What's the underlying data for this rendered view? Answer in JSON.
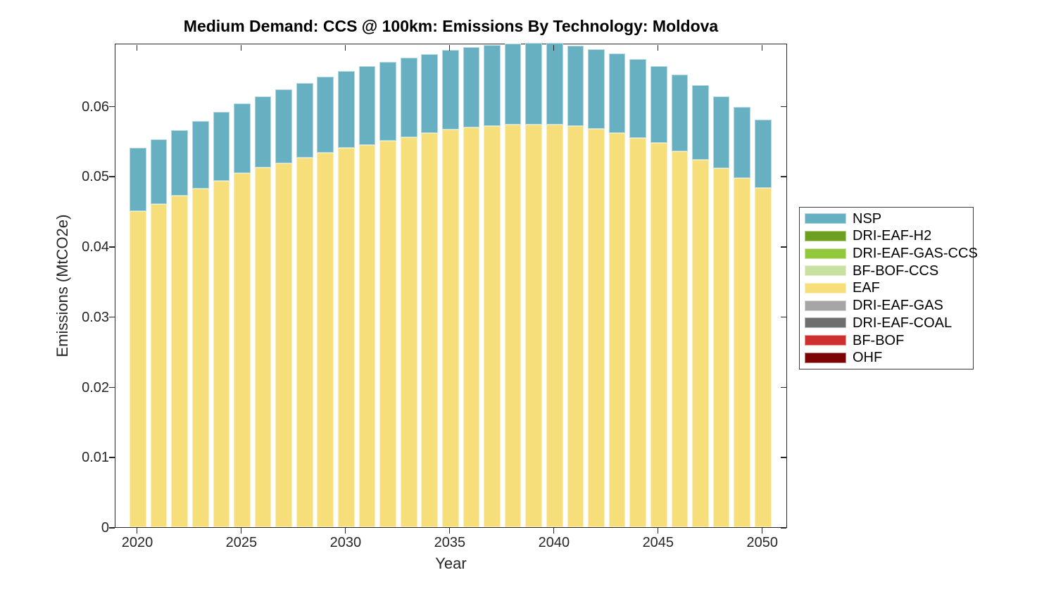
{
  "chart_data": {
    "type": "bar",
    "stacked": true,
    "title": "Medium Demand: CCS @ 100km: Emissions By Technology: Moldova",
    "xlabel": "Year",
    "ylabel": "Emissions (MtCO2e)",
    "x": [
      2020,
      2021,
      2022,
      2023,
      2024,
      2025,
      2026,
      2027,
      2028,
      2029,
      2030,
      2031,
      2032,
      2033,
      2034,
      2035,
      2036,
      2037,
      2038,
      2039,
      2040,
      2041,
      2042,
      2043,
      2044,
      2045,
      2046,
      2047,
      2048,
      2049,
      2050
    ],
    "series": [
      {
        "name": "NSP",
        "color": "#66B0C2",
        "values": [
          0.0091,
          0.0093,
          0.0094,
          0.0097,
          0.0099,
          0.01,
          0.0102,
          0.0105,
          0.0106,
          0.0108,
          0.0109,
          0.0112,
          0.0112,
          0.0113,
          0.0112,
          0.0113,
          0.0114,
          0.0115,
          0.0115,
          0.0116,
          0.0116,
          0.0114,
          0.0113,
          0.0113,
          0.0112,
          0.0109,
          0.0109,
          0.0106,
          0.0103,
          0.0102,
          0.0098
        ]
      },
      {
        "name": "DRI-EAF-H2",
        "color": "#6DA01E",
        "values": [
          0,
          0,
          0,
          0,
          0,
          0,
          0,
          0,
          0,
          0,
          0,
          0,
          0,
          0,
          0,
          0,
          0,
          0,
          0,
          0,
          0,
          0,
          0,
          0,
          0,
          0,
          0,
          0,
          0,
          0,
          0
        ]
      },
      {
        "name": "DRI-EAF-GAS-CCS",
        "color": "#93C83D",
        "values": [
          0,
          0,
          0,
          0,
          0,
          0,
          0,
          0,
          0,
          0,
          0,
          0,
          0,
          0,
          0,
          0,
          0,
          0,
          0,
          0,
          0,
          0,
          0,
          0,
          0,
          0,
          0,
          0,
          0,
          0,
          0
        ]
      },
      {
        "name": "BF-BOF-CCS",
        "color": "#C8E0A0",
        "values": [
          0,
          0,
          0,
          0,
          0,
          0,
          0,
          0,
          0,
          0,
          0,
          0,
          0,
          0,
          0,
          0,
          0,
          0,
          0,
          0,
          0,
          0,
          0,
          0,
          0,
          0,
          0,
          0,
          0,
          0,
          0
        ]
      },
      {
        "name": "EAF",
        "color": "#F6DF7B",
        "values": [
          0.045,
          0.046,
          0.0472,
          0.0482,
          0.0493,
          0.0504,
          0.0512,
          0.0519,
          0.0527,
          0.0534,
          0.0541,
          0.0545,
          0.0551,
          0.0556,
          0.0562,
          0.0567,
          0.057,
          0.0572,
          0.0574,
          0.0574,
          0.0574,
          0.0572,
          0.0568,
          0.0562,
          0.0555,
          0.0548,
          0.0536,
          0.0524,
          0.0511,
          0.0497,
          0.0483
        ]
      },
      {
        "name": "DRI-EAF-GAS",
        "color": "#A6A6A6",
        "values": [
          0,
          0,
          0,
          0,
          0,
          0,
          0,
          0,
          0,
          0,
          0,
          0,
          0,
          0,
          0,
          0,
          0,
          0,
          0,
          0,
          0,
          0,
          0,
          0,
          0,
          0,
          0,
          0,
          0,
          0,
          0
        ]
      },
      {
        "name": "DRI-EAF-COAL",
        "color": "#6E6E6E",
        "values": [
          0,
          0,
          0,
          0,
          0,
          0,
          0,
          0,
          0,
          0,
          0,
          0,
          0,
          0,
          0,
          0,
          0,
          0,
          0,
          0,
          0,
          0,
          0,
          0,
          0,
          0,
          0,
          0,
          0,
          0,
          0
        ]
      },
      {
        "name": "BF-BOF",
        "color": "#CE2F2F",
        "values": [
          0,
          0,
          0,
          0,
          0,
          0,
          0,
          0,
          0,
          0,
          0,
          0,
          0,
          0,
          0,
          0,
          0,
          0,
          0,
          0,
          0,
          0,
          0,
          0,
          0,
          0,
          0,
          0,
          0,
          0,
          0
        ]
      },
      {
        "name": "OHF",
        "color": "#7D0404",
        "values": [
          0,
          0,
          0,
          0,
          0,
          0,
          0,
          0,
          0,
          0,
          0,
          0,
          0,
          0,
          0,
          0,
          0,
          0,
          0,
          0,
          0,
          0,
          0,
          0,
          0,
          0,
          0,
          0,
          0,
          0,
          0
        ]
      }
    ],
    "stack_bottom_to_top": [
      "OHF",
      "BF-BOF",
      "DRI-EAF-COAL",
      "DRI-EAF-GAS",
      "EAF",
      "BF-BOF-CCS",
      "DRI-EAF-GAS-CCS",
      "DRI-EAF-H2",
      "NSP"
    ],
    "bar_width_data_units": 0.8,
    "xlim": [
      2018.92,
      2051.19
    ],
    "ylim": [
      0,
      0.069
    ],
    "x_ticks": [
      2020,
      2025,
      2030,
      2035,
      2040,
      2045,
      2050
    ],
    "x_tick_labels": [
      "2020",
      "2025",
      "2030",
      "2035",
      "2040",
      "2045",
      "2050"
    ],
    "y_ticks": [
      0,
      0.01,
      0.02,
      0.03,
      0.04,
      0.05,
      0.06
    ],
    "y_tick_labels": [
      "0",
      "0.01",
      "0.02",
      "0.03",
      "0.04",
      "0.05",
      "0.06"
    ],
    "grid": false,
    "plot_background": "#ffffff",
    "axis_color": "#262626"
  },
  "legend": {
    "position": "outside-right",
    "labels": [
      "NSP",
      "DRI-EAF-H2",
      "DRI-EAF-GAS-CCS",
      "BF-BOF-CCS",
      "EAF",
      "DRI-EAF-GAS",
      "DRI-EAF-COAL",
      "BF-BOF",
      "OHF"
    ]
  }
}
